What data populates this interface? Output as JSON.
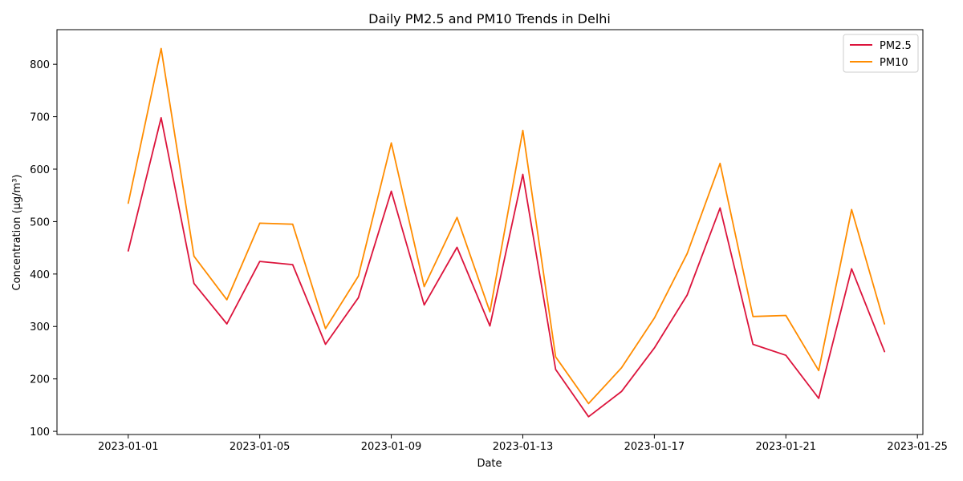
{
  "chart_data": {
    "type": "line",
    "title": "Daily PM2.5 and PM10 Trends in Delhi",
    "xlabel": "Date",
    "ylabel": "Concentration (µg/m³)",
    "x": [
      "2023-01-01",
      "2023-01-02",
      "2023-01-03",
      "2023-01-04",
      "2023-01-05",
      "2023-01-06",
      "2023-01-07",
      "2023-01-08",
      "2023-01-09",
      "2023-01-10",
      "2023-01-11",
      "2023-01-12",
      "2023-01-13",
      "2023-01-14",
      "2023-01-15",
      "2023-01-16",
      "2023-01-17",
      "2023-01-18",
      "2023-01-19",
      "2023-01-20",
      "2023-01-21",
      "2023-01-22",
      "2023-01-23",
      "2023-01-24"
    ],
    "series": [
      {
        "name": "PM2.5",
        "color": "#dc143c",
        "values": [
          444,
          698,
          382,
          305,
          424,
          418,
          266,
          355,
          558,
          341,
          451,
          301,
          590,
          218,
          128,
          176,
          259,
          360,
          526,
          266,
          245,
          163,
          410,
          252
        ]
      },
      {
        "name": "PM10",
        "color": "#ff8c00",
        "values": [
          535,
          830,
          434,
          351,
          497,
          495,
          296,
          396,
          650,
          376,
          508,
          328,
          674,
          242,
          153,
          221,
          316,
          439,
          611,
          319,
          321,
          216,
          523,
          305
        ]
      }
    ],
    "xlim": [
      "2022-12-29T20:00",
      "2023-01-25T04:00"
    ],
    "ylim": [
      94,
      866
    ],
    "x_ticks": [
      "2023-01-01",
      "2023-01-05",
      "2023-01-09",
      "2023-01-13",
      "2023-01-17",
      "2023-01-21",
      "2023-01-25"
    ],
    "y_ticks": [
      100,
      200,
      300,
      400,
      500,
      600,
      700,
      800
    ],
    "grid": false,
    "legend_position": "top-right"
  }
}
